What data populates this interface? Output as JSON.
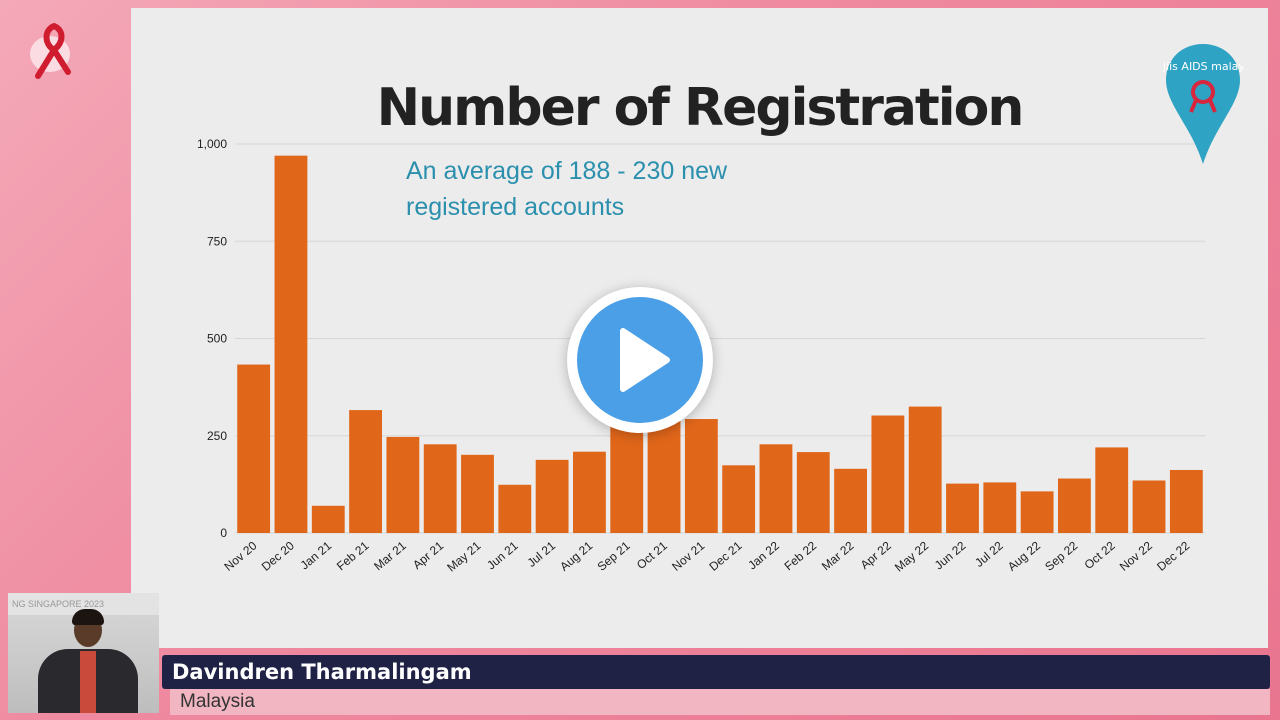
{
  "slide": {
    "title": "Number of Registration",
    "note_line1": "An average of 188 - 230 new",
    "note_line2": "registered accounts"
  },
  "logo": {
    "text": "majlis AIDS malaysia",
    "brand_color": "#2fa3c4"
  },
  "colors": {
    "bar": "#e0661a",
    "note": "#2b8fae",
    "play": "#4a9fe6"
  },
  "video": {
    "camera_banner": "NG SINGAPORE 2023"
  },
  "lower_third": {
    "name": "Davindren Tharmalingam",
    "country": "Malaysia"
  },
  "chart_data": {
    "type": "bar",
    "title": "Number of Registration",
    "xlabel": "",
    "ylabel": "",
    "ylim": [
      0,
      1000
    ],
    "yticks": [
      0,
      250,
      500,
      750,
      1000
    ],
    "ytick_labels": [
      "0",
      "250",
      "500",
      "750",
      "1,000"
    ],
    "grid": true,
    "categories": [
      "Nov 20",
      "Dec 20",
      "Jan 21",
      "Feb 21",
      "Mar 21",
      "Apr 21",
      "May 21",
      "Jun 21",
      "Jul 21",
      "Aug 21",
      "Sep 21",
      "Oct 21",
      "Nov 21",
      "Dec 21",
      "Jan 22",
      "Feb 22",
      "Mar 22",
      "Apr 22",
      "May 22",
      "Jun 22",
      "Jul 22",
      "Aug 22",
      "Sep 22",
      "Oct 22",
      "Nov 22",
      "Dec 22"
    ],
    "values": [
      433,
      970,
      70,
      316,
      247,
      228,
      201,
      124,
      188,
      209,
      280,
      290,
      293,
      174,
      228,
      208,
      165,
      302,
      325,
      127,
      130,
      107,
      140,
      220,
      135,
      162
    ]
  }
}
